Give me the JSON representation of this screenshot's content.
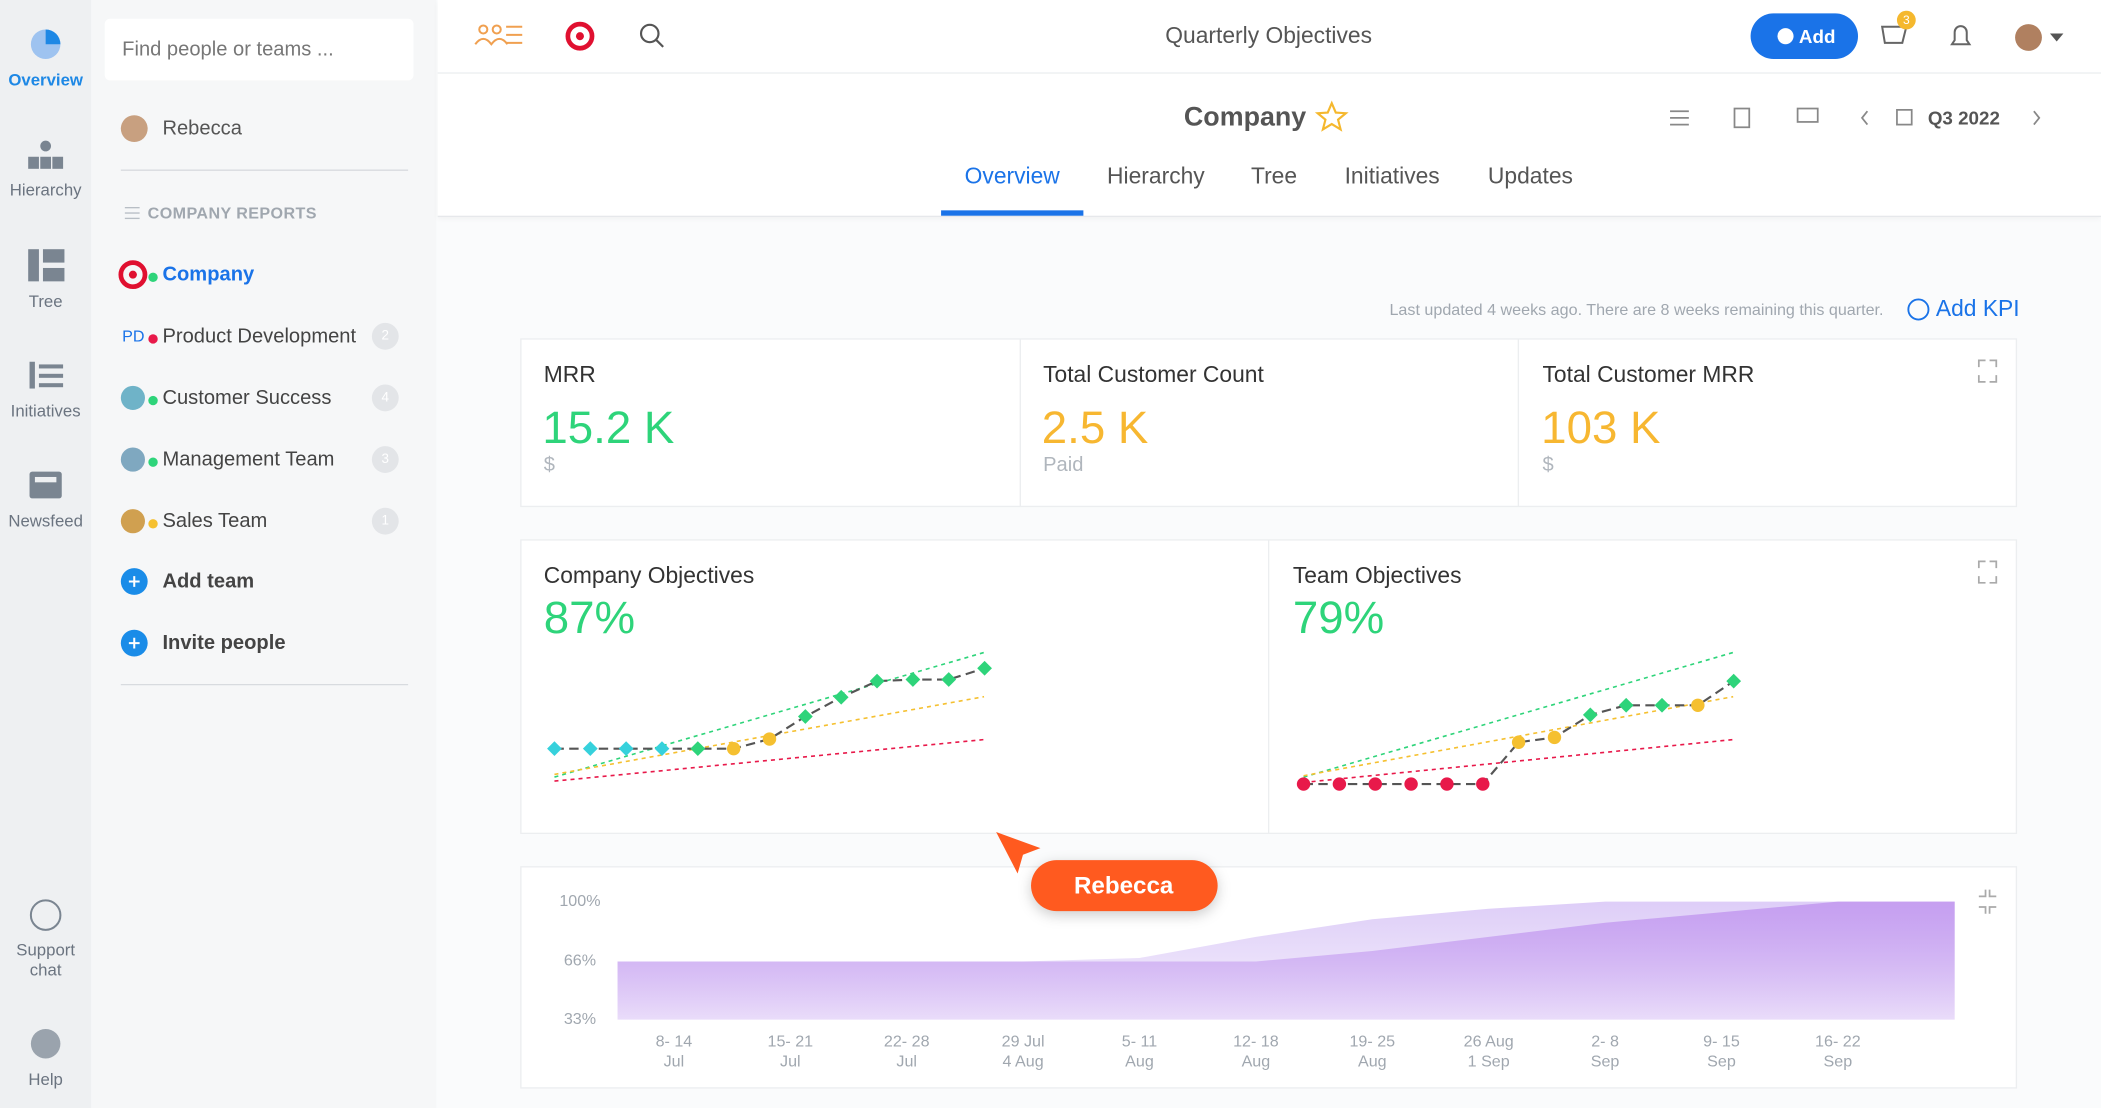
{
  "rail": [
    "Overview",
    "Hierarchy",
    "Tree",
    "Initiatives",
    "Newsfeed",
    "Support chat",
    "Help"
  ],
  "sidebar": {
    "search_placeholder": "Find people or teams ...",
    "user": "Rebecca",
    "section": "COMPANY REPORTS",
    "teams": [
      {
        "name": "Company",
        "status_color": "#2ed47a"
      },
      {
        "name": "Product Development",
        "initials": "PD",
        "badge": "2",
        "status_color": "#e8194a"
      },
      {
        "name": "Customer Success",
        "badge": "4",
        "status_color": "#2ed47a"
      },
      {
        "name": "Management Team",
        "badge": "3",
        "status_color": "#2ed47a"
      },
      {
        "name": "Sales Team",
        "badge": "1",
        "status_color": "#f5c030"
      }
    ],
    "actions": [
      "Add team",
      "Invite people"
    ]
  },
  "header": {
    "title": "Quarterly Objectives",
    "add": "Add",
    "cart_count": "3"
  },
  "page": {
    "name": "Company",
    "period": "Q3 2022",
    "tabs": [
      "Overview",
      "Hierarchy",
      "Tree",
      "Initiatives",
      "Updates"
    ],
    "active_tab": 0
  },
  "last_updated": "Last updated 4 weeks ago. There are 8 weeks remaining this quarter.",
  "add_kpi": "Add KPI",
  "kpis": [
    {
      "label": "MRR",
      "value": "15.2 K",
      "unit": "$",
      "color": "#2ed47a"
    },
    {
      "label": "Total Customer Count",
      "value": "2.5 K",
      "unit": "Paid",
      "color": "#f7b731"
    },
    {
      "label": "Total Customer MRR",
      "value": "103 K",
      "unit": "$",
      "color": "#f7b731"
    }
  ],
  "objectives": [
    {
      "title": "Company Objectives",
      "score": "87%",
      "points": [
        26,
        26,
        26,
        26,
        26,
        26,
        32,
        46,
        58,
        68,
        69,
        69,
        76
      ],
      "point_colors": [
        "#36d1dc",
        "#36d1dc",
        "#36d1dc",
        "#36d1dc",
        "#2ed47a",
        "#f5c030",
        "#f5c030",
        "#2ed47a",
        "#2ed47a",
        "#2ed47a",
        "#2ed47a",
        "#2ed47a",
        "#2ed47a"
      ]
    },
    {
      "title": "Team Objectives",
      "score": "79%",
      "points": [
        4,
        4,
        4,
        4,
        4,
        4,
        30,
        33,
        47,
        53,
        53,
        53,
        68
      ],
      "point_colors": [
        "#e8194a",
        "#e8194a",
        "#e8194a",
        "#e8194a",
        "#e8194a",
        "#e8194a",
        "#f5c030",
        "#f5c030",
        "#2ed47a",
        "#2ed47a",
        "#2ed47a",
        "#f5c030",
        "#2ed47a"
      ]
    }
  ],
  "chart_data": {
    "type": "area",
    "categories": [
      [
        "8- 14",
        "Jul"
      ],
      [
        "15- 21",
        "Jul"
      ],
      [
        "22- 28",
        "Jul"
      ],
      [
        "29 Jul",
        "4 Aug"
      ],
      [
        "5- 11",
        "Aug"
      ],
      [
        "12- 18",
        "Aug"
      ],
      [
        "19- 25",
        "Aug"
      ],
      [
        "26 Aug",
        "1 Sep"
      ],
      [
        "2- 8",
        "Sep"
      ],
      [
        "9- 15",
        "Sep"
      ],
      [
        "16- 22",
        "Sep"
      ]
    ],
    "series": [
      {
        "color": "#dccbf7",
        "values": [
          66,
          66,
          66,
          66,
          68,
          80,
          90,
          96,
          100,
          100,
          100
        ]
      },
      {
        "color": "#c49cf0",
        "values": [
          66,
          66,
          66,
          66,
          66,
          66,
          72,
          80,
          88,
          94,
          100
        ]
      }
    ],
    "ylim": [
      33,
      100
    ],
    "yticks": [
      {
        "value": 33,
        "label": "33%"
      },
      {
        "value": 66,
        "label": "66%"
      },
      {
        "value": 100,
        "label": "100%"
      }
    ]
  },
  "cursor_label": "Rebecca"
}
